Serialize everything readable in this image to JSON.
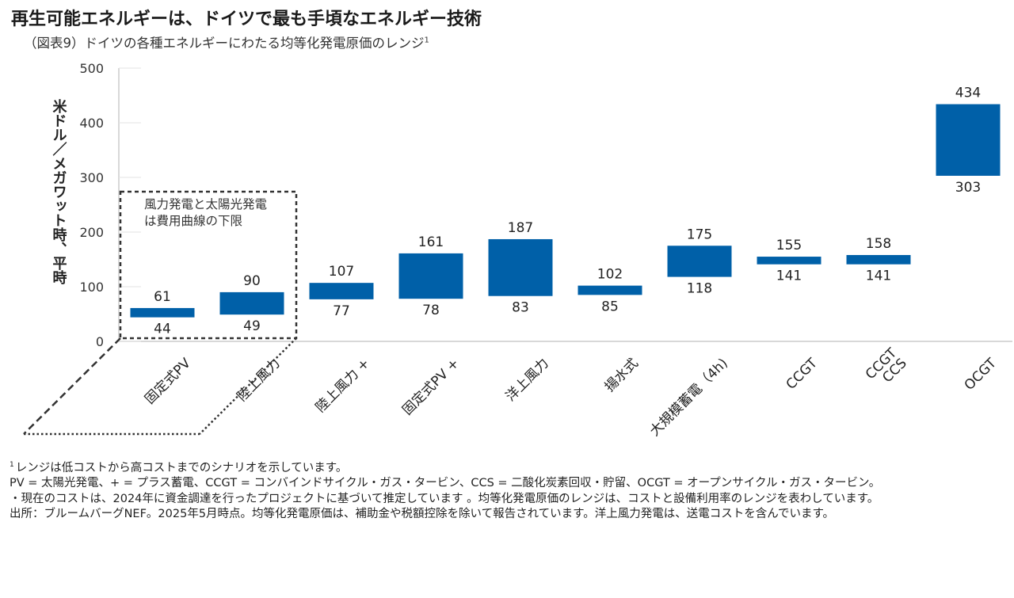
{
  "title": "再生可能エネルギーは、ドイツで最も手頃なエネルギー技術",
  "subtitle": "（図表9）ドイツの各種エネルギーにわたる均等化発電原価のレンジ",
  "subtitle_sup": "1",
  "annotation": "風力発電と太陽光発電は費用曲線の下限",
  "colors": {
    "bar": "#0060A8",
    "axis": "#cccccc",
    "text": "#222222"
  },
  "chart_data": {
    "type": "bar",
    "subtype": "floating-range",
    "ylabel": "米ドル／メガワット時、平時",
    "ylim": [
      0,
      500
    ],
    "yticks": [
      0,
      100,
      200,
      300,
      400,
      500
    ],
    "categories": [
      "固定式PV",
      "陸上風力",
      "陸上風力 +",
      "固定式PV +",
      "洋上風力",
      "揚水式",
      "大規模蓄電（4h)",
      "CCGT",
      "CCGT\nCCS",
      "OCGT"
    ],
    "series": [
      {
        "name": "low",
        "values": [
          44,
          49,
          77,
          78,
          83,
          85,
          118,
          141,
          141,
          303
        ]
      },
      {
        "name": "high",
        "values": [
          61,
          90,
          107,
          161,
          187,
          102,
          175,
          155,
          158,
          434
        ]
      }
    ]
  },
  "footnotes": {
    "sup": "1",
    "note1": "レンジは低コストから高コストまでのシナリオを示しています。",
    "note2": "PV = 太陽光発電、+ = プラス蓄電、CCGT = コンバインドサイクル・ガス・タービン、CCS = 二酸化炭素回収・貯留、OCGT = オープンサイクル・ガス・タービン。",
    "note3": "・現在のコストは、2024年に資金調達を行ったプロジェクトに基づいて推定しています 。均等化発電原価のレンジは、コストと設備利用率のレンジを表わしています。",
    "note4": "出所：ブルームバーグNEF。2025年5月時点。均等化発電原価は、補助金や税額控除を除いて報告されています。洋上風力発電は、送電コストを含んでいます。"
  }
}
